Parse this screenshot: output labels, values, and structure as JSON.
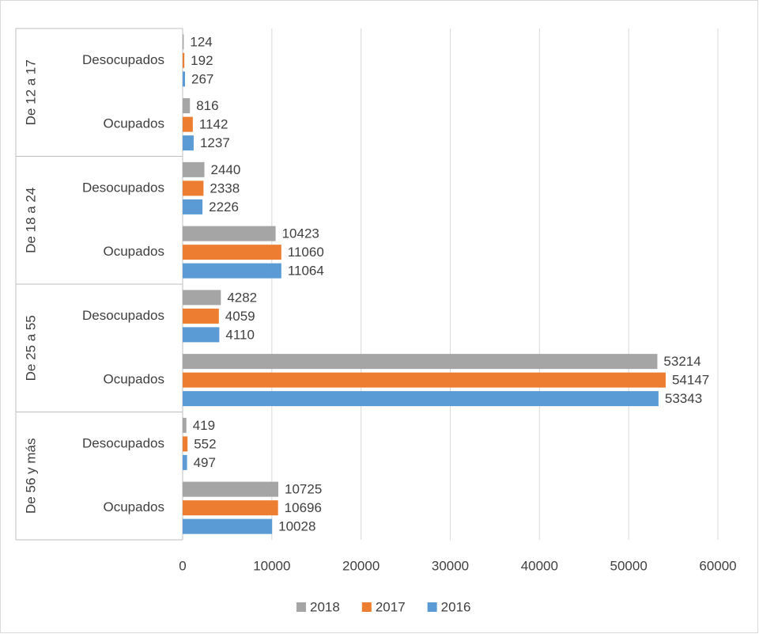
{
  "chart_data": {
    "type": "bar",
    "orientation": "horizontal",
    "groups": [
      "De 12 a 17",
      "De 18 a 24",
      "De 25 a 55",
      "De 56 y más"
    ],
    "categories": [
      "Desocupados",
      "Ocupados",
      "Desocupados",
      "Ocupados",
      "Desocupados",
      "Ocupados",
      "Desocupados",
      "Ocupados"
    ],
    "series": [
      {
        "name": "2018",
        "color": "#a5a5a5",
        "values": [
          124,
          816,
          2440,
          10423,
          4282,
          53214,
          419,
          10725
        ]
      },
      {
        "name": "2017",
        "color": "#ed7d31",
        "values": [
          192,
          1142,
          2338,
          11060,
          4059,
          54147,
          552,
          10696
        ]
      },
      {
        "name": "2016",
        "color": "#5b9bd5",
        "values": [
          267,
          1237,
          2226,
          11064,
          4110,
          53343,
          497,
          10028
        ]
      }
    ],
    "xlim": [
      0,
      60000
    ],
    "xticks": [
      0,
      10000,
      20000,
      30000,
      40000,
      50000,
      60000
    ],
    "grid": true,
    "legend": "bottom"
  }
}
